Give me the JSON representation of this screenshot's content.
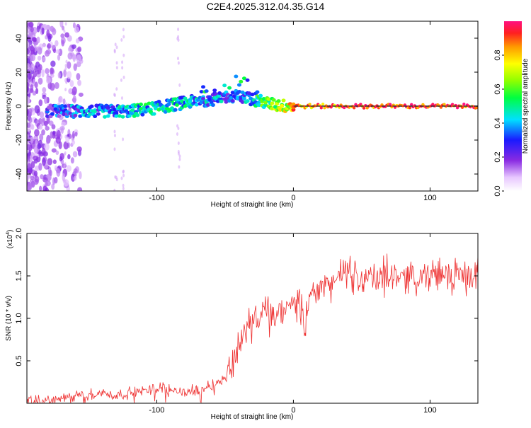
{
  "title": "C2E4.2025.312.04.35.G14",
  "colors": {
    "snr_line": "#ee3030",
    "axis": "#000000",
    "background": "#ffffff"
  },
  "colorbar": {
    "label": "Normalized spectral amplitude",
    "ticks": [
      "0.0",
      "0.2",
      "0.4",
      "0.6",
      "0.8"
    ],
    "tick_values": [
      0.0,
      0.2,
      0.4,
      0.6,
      0.8
    ]
  },
  "chart_data": [
    {
      "type": "heatmap",
      "title": "C2E4.2025.312.04.35.G14",
      "xlabel": "Height of straight line (km)",
      "ylabel": "Frequency (Hz)",
      "xlim": [
        -195,
        135
      ],
      "ylim": [
        -50,
        50
      ],
      "xticks": [
        -100,
        0,
        100
      ],
      "xtick_labels": [
        "-100",
        "0",
        "100"
      ],
      "yticks": [
        -40,
        -20,
        0,
        20,
        40
      ],
      "ytick_labels": [
        "-40",
        "-20",
        "0",
        "20",
        "40"
      ],
      "zlim": [
        0,
        1
      ],
      "ridge": {
        "description_values": "dominant frequency (Hz) vs height (km) with normalized amplitude",
        "x": [
          -180,
          -160,
          -140,
          -120,
          -100,
          -80,
          -60,
          -45,
          -35,
          -25,
          -15,
          -5,
          0,
          20,
          40,
          60,
          80,
          100,
          120,
          135
        ],
        "y": [
          -3,
          -3,
          -3,
          -3,
          -1,
          2,
          4,
          6,
          5,
          3,
          1,
          0,
          0,
          0,
          0,
          0,
          0,
          0,
          0,
          0
        ],
        "amplitude": [
          0.25,
          0.3,
          0.35,
          0.4,
          0.45,
          0.4,
          0.35,
          0.3,
          0.35,
          0.5,
          0.6,
          0.7,
          0.8,
          0.85,
          0.88,
          0.9,
          0.92,
          0.93,
          0.94,
          0.95
        ]
      }
    },
    {
      "type": "line",
      "xlabel": "Height of straight line (km)",
      "ylabel": "SNR (10 * v/v)",
      "yscale_label": "(x10",
      "yscale_exp": "4",
      "xlim": [
        -195,
        135
      ],
      "ylim": [
        0,
        2.0
      ],
      "xticks": [
        -100,
        0,
        100
      ],
      "xtick_labels": [
        "-100",
        "0",
        "100"
      ],
      "yticks": [
        0.5,
        1.0,
        1.5,
        2.0
      ],
      "ytick_labels": [
        "0.5",
        "1.0",
        "1.5",
        "2.0"
      ],
      "series": [
        {
          "x": [
            -195,
            -180,
            -170,
            -160,
            -150,
            -140,
            -130,
            -120,
            -110,
            -100,
            -95,
            -90,
            -85,
            -80,
            -75,
            -70,
            -65,
            -60,
            -55,
            -50,
            -45,
            -40,
            -35,
            -30,
            -28,
            -25,
            -20,
            -15,
            -10,
            -5,
            0,
            5,
            8,
            10,
            12,
            15,
            20,
            25,
            30,
            35,
            40,
            45,
            50,
            55,
            60,
            65,
            70,
            80,
            90,
            100,
            110,
            120,
            130,
            135
          ],
          "y": [
            0.01,
            0.03,
            0.05,
            0.08,
            0.1,
            0.12,
            0.09,
            0.12,
            0.14,
            0.18,
            0.2,
            0.16,
            0.15,
            0.12,
            0.14,
            0.16,
            0.18,
            0.22,
            0.25,
            0.3,
            0.45,
            0.7,
            0.85,
            0.95,
            1.05,
            1.0,
            1.1,
            1.0,
            1.05,
            1.1,
            1.15,
            1.2,
            0.8,
            1.1,
            1.25,
            1.3,
            1.35,
            1.4,
            1.45,
            1.5,
            1.55,
            1.5,
            1.45,
            1.5,
            1.45,
            1.5,
            1.55,
            1.5,
            1.5,
            1.5,
            1.52,
            1.5,
            1.5,
            1.52
          ]
        }
      ]
    }
  ]
}
